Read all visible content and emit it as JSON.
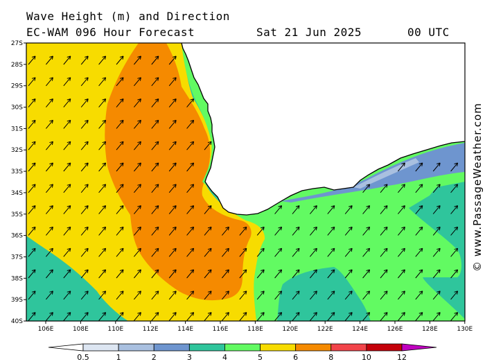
{
  "title": {
    "line1": "Wave Height (m) and Direction",
    "line2": "EC-WAM 096 Hour Forecast",
    "date": "Sat 21 Jun 2025",
    "time": "00 UTC"
  },
  "credit": "© www.PassageWeather.com",
  "latitude_labels": [
    "27S",
    "28S",
    "29S",
    "30S",
    "31S",
    "32S",
    "33S",
    "34S",
    "35S",
    "36S",
    "37S",
    "38S",
    "39S",
    "40S"
  ],
  "longitude_labels": [
    "106E",
    "108E",
    "110E",
    "112E",
    "114E",
    "116E",
    "118E",
    "120E",
    "122E",
    "124E",
    "126E",
    "128E",
    "130E"
  ],
  "colorbar": {
    "labels": [
      "0.5",
      "1",
      "2",
      "3",
      "4",
      "5",
      "6",
      "8",
      "10",
      "12"
    ],
    "colors": [
      "#dde6f2",
      "#a9c0e0",
      "#6e95cf",
      "#2fc59c",
      "#62fa62",
      "#f7dc00",
      "#f58a00",
      "#f2444a",
      "#c4000a",
      "#c000c0"
    ]
  },
  "arrow_direction": "north-east"
}
